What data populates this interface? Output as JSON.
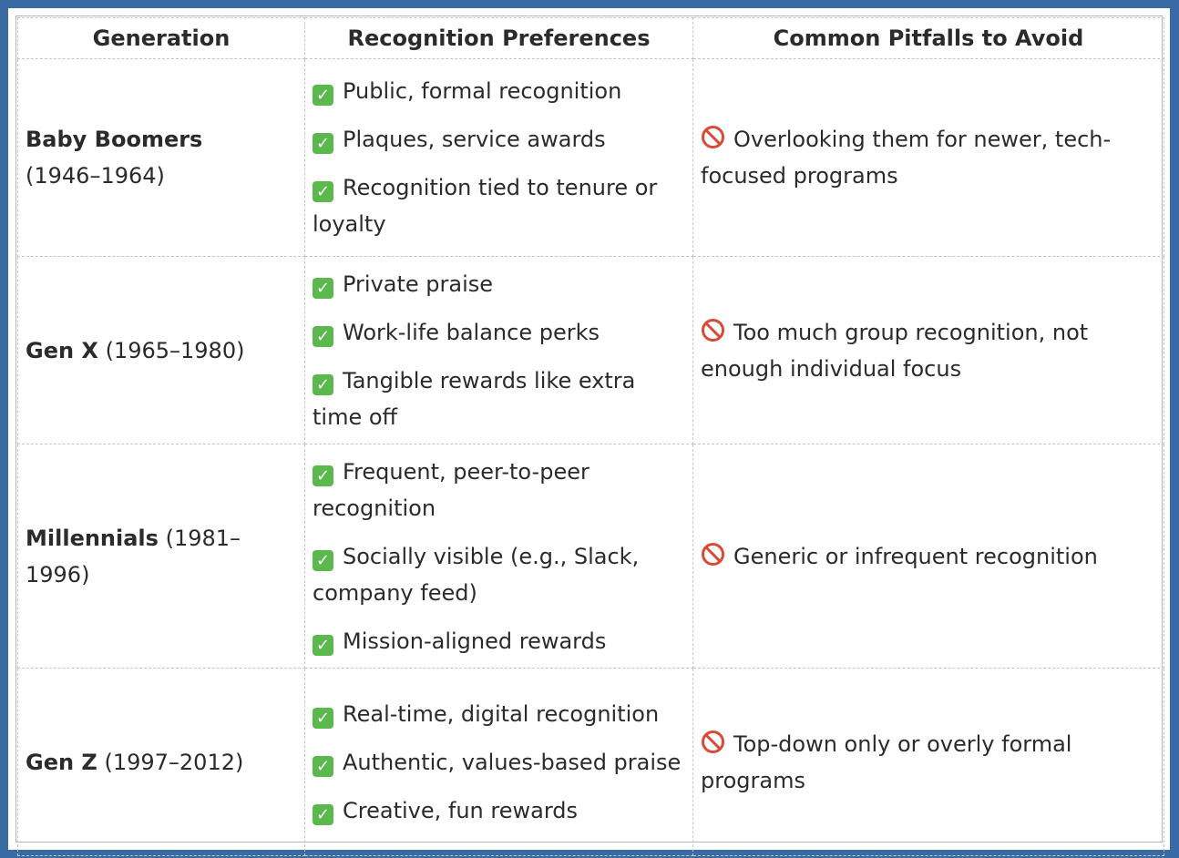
{
  "table": {
    "headers": [
      "Generation",
      "Recognition Preferences",
      "Common Pitfalls to Avoid"
    ],
    "rows": [
      {
        "name": "Baby Boomers",
        "years": "(1946–1964)",
        "preferences": [
          "Public, formal recognition",
          "Plaques, service awards",
          "Recognition tied to tenure or loyalty"
        ],
        "pitfall": "Overlooking them for newer, tech-focused programs"
      },
      {
        "name": "Gen X",
        "years": "(1965–1980)",
        "preferences": [
          "Private praise",
          "Work-life balance perks",
          "Tangible rewards like extra time off"
        ],
        "pitfall": "Too much group recognition, not enough individual focus"
      },
      {
        "name": "Millennials",
        "years": "(1981–1996)",
        "preferences": [
          "Frequent, peer-to-peer recognition",
          "Socially visible (e.g., Slack, company feed)",
          "Mission-aligned rewards"
        ],
        "pitfall": "Generic or infrequent recognition"
      },
      {
        "name": "Gen Z",
        "years": "(1997–2012)",
        "preferences": [
          "Real-time, digital recognition",
          "Authentic, values-based praise",
          "Creative, fun rewards"
        ],
        "pitfall": "Top-down only or overly formal programs"
      }
    ]
  },
  "icons": {
    "preference": "check-mark-icon",
    "pitfall": "prohibited-icon"
  },
  "colors": {
    "border": "#3a6aa3",
    "check": "#5bb84d",
    "prohibited": "#d94a36"
  }
}
